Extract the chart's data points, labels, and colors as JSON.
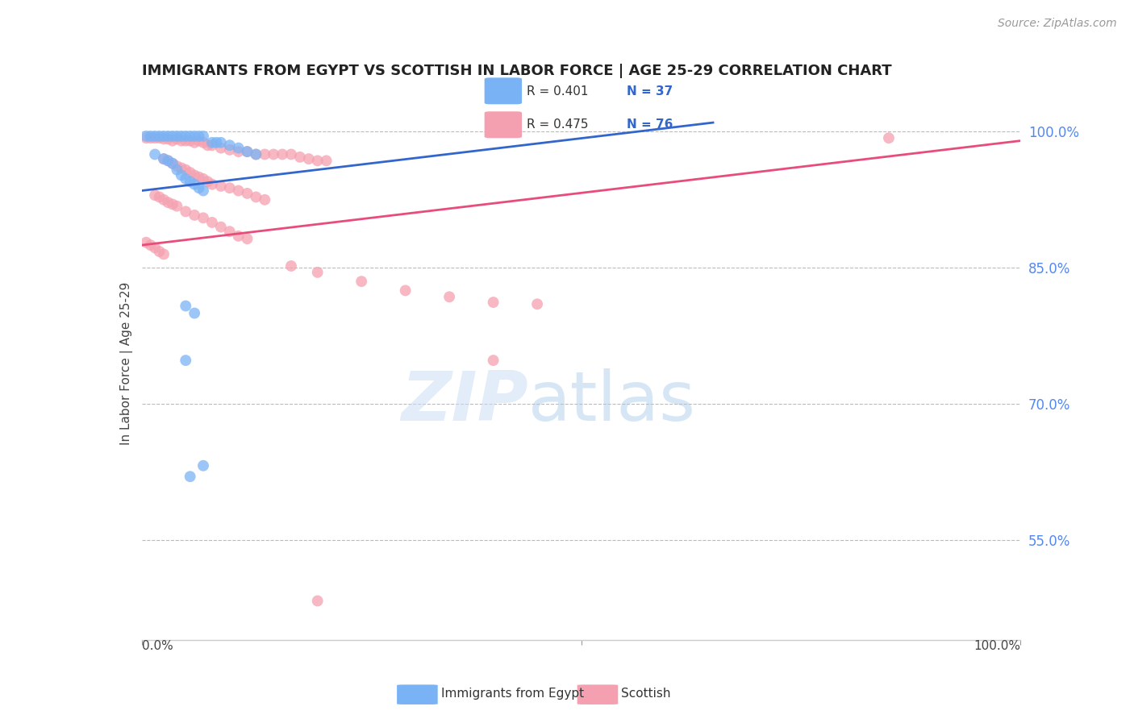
{
  "title": "IMMIGRANTS FROM EGYPT VS SCOTTISH IN LABOR FORCE | AGE 25-29 CORRELATION CHART",
  "source": "Source: ZipAtlas.com",
  "ylabel": "In Labor Force | Age 25-29",
  "ytick_values": [
    1.0,
    0.85,
    0.7,
    0.55
  ],
  "ytick_labels": [
    "100.0%",
    "85.0%",
    "70.0%",
    "55.0%"
  ],
  "xlim": [
    0.0,
    1.0
  ],
  "ylim": [
    0.44,
    1.05
  ],
  "watermark_zip": "ZIP",
  "watermark_atlas": "atlas",
  "legend_blue_label": "Immigrants from Egypt",
  "legend_pink_label": "Scottish",
  "r_blue": 0.401,
  "n_blue": 37,
  "r_pink": 0.475,
  "n_pink": 76,
  "blue_color": "#7ab3f5",
  "pink_color": "#f5a0b0",
  "blue_line_color": "#3366cc",
  "pink_line_color": "#e84c7a",
  "blue_trendline_x": [
    0.0,
    0.65
  ],
  "blue_trendline_y": [
    0.935,
    1.01
  ],
  "pink_trendline_x": [
    0.0,
    1.0
  ],
  "pink_trendline_y": [
    0.875,
    0.99
  ],
  "scatter_blue": [
    [
      0.005,
      0.995
    ],
    [
      0.01,
      0.995
    ],
    [
      0.015,
      0.995
    ],
    [
      0.02,
      0.995
    ],
    [
      0.025,
      0.995
    ],
    [
      0.03,
      0.995
    ],
    [
      0.035,
      0.995
    ],
    [
      0.04,
      0.995
    ],
    [
      0.045,
      0.995
    ],
    [
      0.05,
      0.995
    ],
    [
      0.055,
      0.995
    ],
    [
      0.06,
      0.995
    ],
    [
      0.065,
      0.995
    ],
    [
      0.07,
      0.995
    ],
    [
      0.08,
      0.988
    ],
    [
      0.085,
      0.988
    ],
    [
      0.09,
      0.988
    ],
    [
      0.1,
      0.985
    ],
    [
      0.11,
      0.982
    ],
    [
      0.12,
      0.978
    ],
    [
      0.13,
      0.975
    ],
    [
      0.015,
      0.975
    ],
    [
      0.025,
      0.97
    ],
    [
      0.03,
      0.968
    ],
    [
      0.035,
      0.965
    ],
    [
      0.04,
      0.958
    ],
    [
      0.045,
      0.952
    ],
    [
      0.05,
      0.948
    ],
    [
      0.055,
      0.945
    ],
    [
      0.06,
      0.942
    ],
    [
      0.065,
      0.938
    ],
    [
      0.07,
      0.935
    ],
    [
      0.05,
      0.808
    ],
    [
      0.06,
      0.8
    ],
    [
      0.05,
      0.748
    ],
    [
      0.07,
      0.632
    ],
    [
      0.055,
      0.62
    ]
  ],
  "scatter_pink": [
    [
      0.005,
      0.993
    ],
    [
      0.01,
      0.993
    ],
    [
      0.015,
      0.993
    ],
    [
      0.02,
      0.993
    ],
    [
      0.025,
      0.992
    ],
    [
      0.03,
      0.992
    ],
    [
      0.035,
      0.99
    ],
    [
      0.04,
      0.992
    ],
    [
      0.045,
      0.99
    ],
    [
      0.05,
      0.99
    ],
    [
      0.055,
      0.99
    ],
    [
      0.06,
      0.988
    ],
    [
      0.065,
      0.99
    ],
    [
      0.07,
      0.988
    ],
    [
      0.075,
      0.985
    ],
    [
      0.08,
      0.985
    ],
    [
      0.09,
      0.982
    ],
    [
      0.1,
      0.98
    ],
    [
      0.11,
      0.978
    ],
    [
      0.12,
      0.978
    ],
    [
      0.13,
      0.975
    ],
    [
      0.14,
      0.975
    ],
    [
      0.15,
      0.975
    ],
    [
      0.16,
      0.975
    ],
    [
      0.17,
      0.975
    ],
    [
      0.18,
      0.972
    ],
    [
      0.19,
      0.97
    ],
    [
      0.2,
      0.968
    ],
    [
      0.21,
      0.968
    ],
    [
      0.025,
      0.97
    ],
    [
      0.03,
      0.968
    ],
    [
      0.035,
      0.965
    ],
    [
      0.04,
      0.962
    ],
    [
      0.045,
      0.96
    ],
    [
      0.05,
      0.958
    ],
    [
      0.055,
      0.955
    ],
    [
      0.06,
      0.952
    ],
    [
      0.065,
      0.95
    ],
    [
      0.07,
      0.948
    ],
    [
      0.075,
      0.945
    ],
    [
      0.08,
      0.942
    ],
    [
      0.09,
      0.94
    ],
    [
      0.1,
      0.938
    ],
    [
      0.11,
      0.935
    ],
    [
      0.12,
      0.932
    ],
    [
      0.13,
      0.928
    ],
    [
      0.14,
      0.925
    ],
    [
      0.015,
      0.93
    ],
    [
      0.02,
      0.928
    ],
    [
      0.025,
      0.925
    ],
    [
      0.03,
      0.922
    ],
    [
      0.035,
      0.92
    ],
    [
      0.04,
      0.918
    ],
    [
      0.05,
      0.912
    ],
    [
      0.06,
      0.908
    ],
    [
      0.07,
      0.905
    ],
    [
      0.08,
      0.9
    ],
    [
      0.09,
      0.895
    ],
    [
      0.1,
      0.89
    ],
    [
      0.11,
      0.885
    ],
    [
      0.12,
      0.882
    ],
    [
      0.005,
      0.878
    ],
    [
      0.01,
      0.875
    ],
    [
      0.015,
      0.872
    ],
    [
      0.02,
      0.868
    ],
    [
      0.025,
      0.865
    ],
    [
      0.17,
      0.852
    ],
    [
      0.2,
      0.845
    ],
    [
      0.25,
      0.835
    ],
    [
      0.3,
      0.825
    ],
    [
      0.35,
      0.818
    ],
    [
      0.4,
      0.812
    ],
    [
      0.45,
      0.81
    ],
    [
      0.4,
      0.748
    ],
    [
      0.2,
      0.483
    ],
    [
      0.85,
      0.993
    ]
  ]
}
